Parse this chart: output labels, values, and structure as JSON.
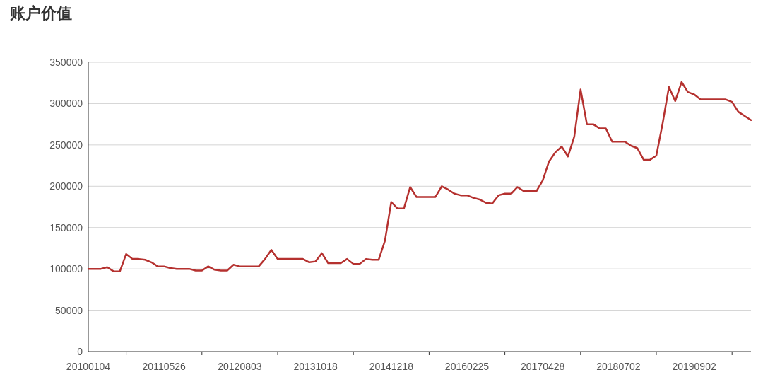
{
  "chart_data": {
    "type": "line",
    "title": "账户价值",
    "categories": [
      "20100104",
      null,
      null,
      null,
      null,
      null,
      null,
      null,
      null,
      null,
      null,
      null,
      "20110526",
      null,
      null,
      null,
      null,
      null,
      null,
      null,
      null,
      null,
      null,
      null,
      "20120803",
      null,
      null,
      null,
      null,
      null,
      null,
      null,
      null,
      null,
      null,
      null,
      "20131018",
      null,
      null,
      null,
      null,
      null,
      null,
      null,
      null,
      null,
      null,
      null,
      "20141218",
      null,
      null,
      null,
      null,
      null,
      null,
      null,
      null,
      null,
      null,
      null,
      "20160225",
      null,
      null,
      null,
      null,
      null,
      null,
      null,
      null,
      null,
      null,
      null,
      "20170428",
      null,
      null,
      null,
      null,
      null,
      null,
      null,
      null,
      null,
      null,
      null,
      "20180702",
      null,
      null,
      null,
      null,
      null,
      null,
      null,
      null,
      null,
      null,
      null,
      "20190902",
      null,
      null,
      null,
      null,
      null,
      null,
      null,
      null,
      null
    ],
    "series": [
      {
        "color": "#b5312f",
        "values": [
          100000,
          100000,
          100000,
          102000,
          97000,
          97000,
          118000,
          112000,
          112000,
          111000,
          108000,
          103000,
          103000,
          101000,
          100000,
          100000,
          100000,
          98000,
          98000,
          103000,
          99000,
          98000,
          98000,
          105000,
          103000,
          103000,
          103000,
          103000,
          112000,
          123000,
          112000,
          112000,
          112000,
          112000,
          112000,
          108000,
          109000,
          119000,
          107000,
          107000,
          107000,
          112000,
          106000,
          106000,
          112000,
          111000,
          111000,
          134000,
          181000,
          173000,
          173000,
          199000,
          187000,
          187000,
          187000,
          187000,
          200000,
          196000,
          191000,
          189000,
          189000,
          186000,
          184000,
          180000,
          179000,
          189000,
          191000,
          191000,
          199000,
          194000,
          194000,
          194000,
          207000,
          230000,
          241000,
          248000,
          236000,
          260000,
          317000,
          275000,
          275000,
          270000,
          270000,
          254000,
          254000,
          254000,
          249000,
          246000,
          232000,
          232000,
          237000,
          276000,
          320000,
          303000,
          326000,
          314000,
          311000,
          305000,
          305000,
          305000,
          305000,
          305000,
          302000,
          290000,
          285000,
          280000
        ]
      }
    ],
    "ylim": [
      0,
      350000
    ],
    "yticks": [
      0,
      50000,
      100000,
      150000,
      200000,
      250000,
      300000,
      350000
    ],
    "grid": "y",
    "marker": "none",
    "line_style": "solid"
  }
}
